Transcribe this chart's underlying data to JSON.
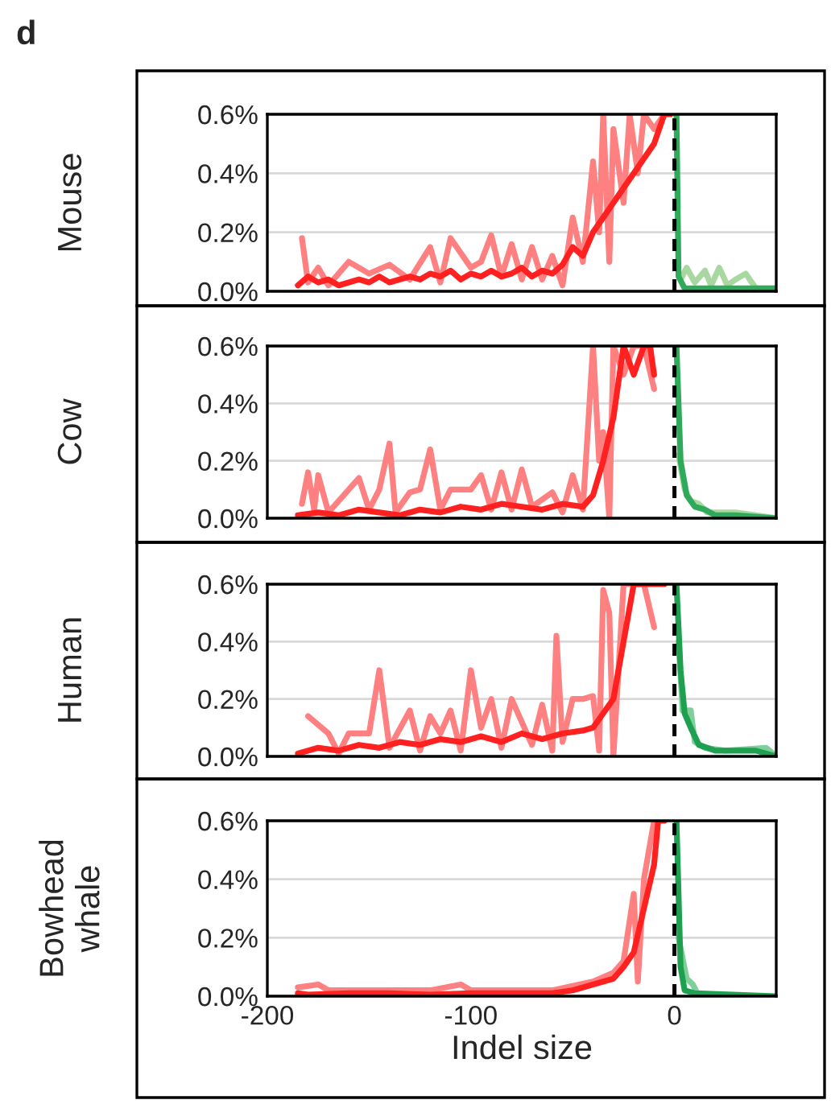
{
  "chart_data": [
    {
      "type": "line",
      "ylabel": "Mouse",
      "annotations": [
        "d"
      ],
      "xlim": [
        -200,
        50
      ],
      "ylim": [
        0,
        0.6
      ],
      "yticks": [
        {
          "value": 0,
          "label": "0.0%"
        },
        {
          "value": 0.2,
          "label": "0.2%"
        },
        {
          "value": 0.4,
          "label": "0.4%"
        },
        {
          "value": 0.6,
          "label": "0.6%"
        }
      ],
      "grid": "y",
      "tick_labels": "y",
      "ref_lines": [
        {
          "axis": "x",
          "value": 0,
          "color": "#000000",
          "line_style": "dashed"
        }
      ],
      "series": [
        {
          "color": "#ff8080",
          "x": [
            -183,
            -180,
            -175,
            -170,
            -160,
            -150,
            -140,
            -130,
            -120,
            -115,
            -110,
            -100,
            -95,
            -90,
            -85,
            -80,
            -75,
            -70,
            -65,
            -60,
            -55,
            -50,
            -45,
            -40,
            -37,
            -35,
            -32,
            -30,
            -25,
            -22,
            -18,
            -15,
            -10,
            -5
          ],
          "values": [
            0.18,
            0.03,
            0.08,
            0.02,
            0.1,
            0.06,
            0.09,
            0.04,
            0.15,
            0.03,
            0.18,
            0.08,
            0.1,
            0.19,
            0.05,
            0.16,
            0.04,
            0.15,
            0.04,
            0.12,
            0.02,
            0.25,
            0.1,
            0.44,
            0.2,
            0.6,
            0.1,
            0.55,
            0.3,
            0.6,
            0.4,
            0.6,
            0.55,
            0.6
          ]
        },
        {
          "color": "#ff2020",
          "x": [
            -185,
            -180,
            -175,
            -170,
            -165,
            -160,
            -155,
            -150,
            -145,
            -140,
            -135,
            -130,
            -125,
            -120,
            -115,
            -110,
            -105,
            -100,
            -95,
            -90,
            -85,
            -80,
            -75,
            -70,
            -65,
            -60,
            -55,
            -50,
            -45,
            -40,
            -35,
            -30,
            -25,
            -20,
            -15,
            -10,
            -5,
            -2
          ],
          "values": [
            0.02,
            0.05,
            0.03,
            0.04,
            0.02,
            0.03,
            0.04,
            0.03,
            0.05,
            0.03,
            0.04,
            0.05,
            0.04,
            0.06,
            0.05,
            0.07,
            0.04,
            0.06,
            0.05,
            0.07,
            0.05,
            0.06,
            0.08,
            0.05,
            0.07,
            0.06,
            0.09,
            0.15,
            0.12,
            0.2,
            0.25,
            0.3,
            0.35,
            0.4,
            0.45,
            0.5,
            0.6,
            0.6
          ]
        },
        {
          "color": "#a8d8a0",
          "x": [
            3,
            6,
            10,
            15,
            18,
            22,
            26,
            30,
            35,
            40,
            50
          ],
          "values": [
            0.04,
            0.08,
            0.03,
            0.07,
            0.02,
            0.08,
            0.02,
            0.04,
            0.06,
            0.01,
            0.01
          ]
        },
        {
          "color": "#2eaa5a",
          "x": [
            1,
            2,
            5,
            10,
            20,
            30,
            40,
            50
          ],
          "values": [
            0.6,
            0.05,
            0.01,
            0.01,
            0.01,
            0.01,
            0.01,
            0.01
          ]
        }
      ]
    },
    {
      "type": "line",
      "ylabel": "Cow",
      "xlim": [
        -200,
        50
      ],
      "ylim": [
        0,
        0.6
      ],
      "yticks": [
        {
          "value": 0,
          "label": "0.0%"
        },
        {
          "value": 0.2,
          "label": "0.2%"
        },
        {
          "value": 0.4,
          "label": "0.4%"
        },
        {
          "value": 0.6,
          "label": "0.6%"
        }
      ],
      "grid": "y",
      "tick_labels": "y",
      "ref_lines": [
        {
          "axis": "x",
          "value": 0,
          "color": "#000000",
          "line_style": "dashed"
        }
      ],
      "series": [
        {
          "color": "#ff8080",
          "x": [
            -183,
            -180,
            -177,
            -175,
            -170,
            -160,
            -155,
            -150,
            -145,
            -140,
            -137,
            -130,
            -125,
            -120,
            -115,
            -110,
            -100,
            -95,
            -90,
            -85,
            -80,
            -75,
            -70,
            -60,
            -55,
            -50,
            -45,
            -40,
            -37,
            -35,
            -32,
            -30,
            -25,
            -20,
            -15,
            -10
          ],
          "values": [
            0.05,
            0.16,
            0.03,
            0.15,
            0.02,
            0.1,
            0.14,
            0.03,
            0.1,
            0.26,
            0.02,
            0.09,
            0.1,
            0.24,
            0.03,
            0.1,
            0.1,
            0.15,
            0.03,
            0.16,
            0.03,
            0.17,
            0.04,
            0.09,
            0.02,
            0.15,
            0.03,
            0.6,
            0.2,
            0.3,
            0.0,
            0.6,
            0.5,
            0.6,
            0.6,
            0.45
          ]
        },
        {
          "color": "#ff2020",
          "x": [
            -185,
            -175,
            -165,
            -155,
            -145,
            -135,
            -125,
            -115,
            -105,
            -95,
            -85,
            -75,
            -65,
            -55,
            -45,
            -40,
            -35,
            -30,
            -25,
            -20,
            -15,
            -12,
            -10
          ],
          "values": [
            0.01,
            0.02,
            0.01,
            0.03,
            0.02,
            0.01,
            0.03,
            0.02,
            0.04,
            0.03,
            0.05,
            0.04,
            0.03,
            0.05,
            0.04,
            0.08,
            0.2,
            0.35,
            0.6,
            0.5,
            0.6,
            0.6,
            0.5
          ]
        },
        {
          "color": "#a8d8a0",
          "x": [
            2,
            5,
            8,
            12,
            16,
            30,
            50
          ],
          "values": [
            0.22,
            0.1,
            0.06,
            0.05,
            0.02,
            0.02,
            0.0
          ]
        },
        {
          "color": "#2eaa5a",
          "x": [
            1,
            3,
            6,
            10,
            15,
            20,
            30,
            50
          ],
          "values": [
            0.6,
            0.2,
            0.08,
            0.04,
            0.03,
            0.01,
            0.01,
            0.0
          ]
        }
      ]
    },
    {
      "type": "line",
      "ylabel": "Human",
      "xlim": [
        -200,
        50
      ],
      "ylim": [
        0,
        0.6
      ],
      "yticks": [
        {
          "value": 0,
          "label": "0.0%"
        },
        {
          "value": 0.2,
          "label": "0.2%"
        },
        {
          "value": 0.4,
          "label": "0.4%"
        },
        {
          "value": 0.6,
          "label": "0.6%"
        }
      ],
      "grid": "y",
      "tick_labels": "y",
      "ref_lines": [
        {
          "axis": "x",
          "value": 0,
          "color": "#000000",
          "line_style": "dashed"
        }
      ],
      "series": [
        {
          "color": "#ff8080",
          "x": [
            -180,
            -170,
            -165,
            -160,
            -150,
            -145,
            -140,
            -130,
            -125,
            -120,
            -115,
            -110,
            -105,
            -100,
            -95,
            -90,
            -85,
            -80,
            -70,
            -65,
            -60,
            -58,
            -55,
            -50,
            -45,
            -40,
            -37,
            -35,
            -32,
            -30,
            -25,
            -15,
            -10
          ],
          "values": [
            0.14,
            0.08,
            0.01,
            0.08,
            0.08,
            0.3,
            0.03,
            0.16,
            0.02,
            0.14,
            0.08,
            0.16,
            0.02,
            0.3,
            0.1,
            0.2,
            0.03,
            0.2,
            0.04,
            0.18,
            0.02,
            0.42,
            0.05,
            0.2,
            0.2,
            0.21,
            0.02,
            0.58,
            0.5,
            0.0,
            0.6,
            0.6,
            0.45
          ]
        },
        {
          "color": "#ff2020",
          "x": [
            -185,
            -175,
            -165,
            -155,
            -145,
            -135,
            -125,
            -115,
            -105,
            -95,
            -85,
            -75,
            -65,
            -55,
            -45,
            -40,
            -35,
            -30,
            -25,
            -20,
            -10,
            -5
          ],
          "values": [
            0.01,
            0.03,
            0.02,
            0.04,
            0.03,
            0.05,
            0.04,
            0.06,
            0.05,
            0.07,
            0.05,
            0.08,
            0.06,
            0.08,
            0.09,
            0.1,
            0.15,
            0.2,
            0.4,
            0.6,
            0.6,
            0.6
          ]
        },
        {
          "color": "#7fcf9a",
          "x": [
            2,
            4,
            8,
            10,
            15,
            25,
            45,
            50
          ],
          "values": [
            0.4,
            0.16,
            0.16,
            0.05,
            0.03,
            0.02,
            0.03,
            0.0
          ]
        },
        {
          "color": "#1fa050",
          "x": [
            1,
            3,
            5,
            8,
            12,
            20,
            40,
            50
          ],
          "values": [
            0.6,
            0.3,
            0.15,
            0.1,
            0.04,
            0.02,
            0.02,
            0.0
          ]
        }
      ]
    },
    {
      "type": "line",
      "ylabel": "Bowhead\nwhale",
      "xlabel": "Indel size",
      "xlim": [
        -200,
        50
      ],
      "xticks": [
        -200,
        -100,
        0
      ],
      "ylim": [
        0,
        0.6
      ],
      "yticks": [
        {
          "value": 0,
          "label": "0.0%"
        },
        {
          "value": 0.2,
          "label": "0.2%"
        },
        {
          "value": 0.4,
          "label": "0.4%"
        },
        {
          "value": 0.6,
          "label": "0.6%"
        }
      ],
      "grid": "y",
      "ref_lines": [
        {
          "axis": "x",
          "value": 0,
          "color": "#000000",
          "line_style": "dashed"
        }
      ],
      "series": [
        {
          "color": "#ff8080",
          "x": [
            -185,
            -175,
            -170,
            -150,
            -120,
            -105,
            -100,
            -60,
            -40,
            -30,
            -25,
            -20,
            -18,
            -15,
            -10
          ],
          "values": [
            0.03,
            0.04,
            0.02,
            0.02,
            0.02,
            0.04,
            0.02,
            0.02,
            0.05,
            0.08,
            0.12,
            0.35,
            0.05,
            0.4,
            0.6
          ]
        },
        {
          "color": "#ff2020",
          "x": [
            -185,
            -180,
            -160,
            -140,
            -120,
            -100,
            -80,
            -60,
            -50,
            -40,
            -30,
            -25,
            -20,
            -15,
            -10,
            -8,
            -5
          ],
          "values": [
            0.01,
            0.005,
            0.01,
            0.01,
            0.005,
            0.01,
            0.01,
            0.01,
            0.02,
            0.04,
            0.06,
            0.1,
            0.15,
            0.3,
            0.45,
            0.6,
            0.6
          ]
        },
        {
          "color": "#7fcf9a",
          "x": [
            2,
            6,
            9,
            12
          ],
          "values": [
            0.2,
            0.06,
            0.04,
            0.0
          ]
        },
        {
          "color": "#1fa050",
          "x": [
            1,
            3,
            5,
            10,
            50
          ],
          "values": [
            0.6,
            0.1,
            0.02,
            0.01,
            0.0
          ]
        }
      ]
    }
  ]
}
